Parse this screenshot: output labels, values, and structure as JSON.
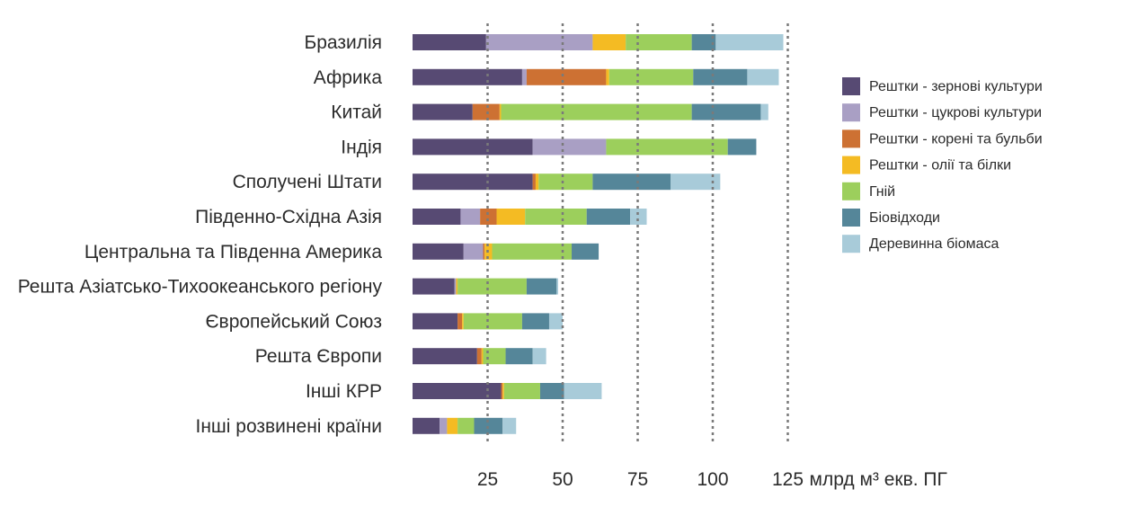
{
  "chart_data": {
    "type": "bar",
    "orientation": "horizontal",
    "stacked": true,
    "categories": [
      "Бразилія",
      "Африка",
      "Китай",
      "Індія",
      "Сполучені Штати",
      "Південно-Східна Азія",
      "Центральна та Південна Америка",
      "Решта Азіатсько-Тихоокеанського регіону",
      "Європейський Союз",
      "Решта Європи",
      "Інші КРР",
      "Інші розвинені країни"
    ],
    "series": [
      {
        "name": "Рештки - зернові культури",
        "color": "#574a73",
        "values": [
          24.5,
          36.5,
          20,
          40,
          40,
          16,
          17,
          14,
          15,
          21.5,
          29.5,
          9
        ]
      },
      {
        "name": "Рештки - цукрові культури",
        "color": "#a99fc4",
        "values": [
          35.5,
          1.5,
          0,
          24.5,
          0,
          6.5,
          6.5,
          0.5,
          0,
          0,
          0,
          2.5
        ]
      },
      {
        "name": "Рештки - корені та бульби",
        "color": "#cd7133",
        "values": [
          0,
          26.5,
          9,
          0,
          1,
          5.5,
          0.5,
          0,
          1.5,
          1.5,
          0.5,
          0
        ]
      },
      {
        "name": "Рештки - олії та білки",
        "color": "#f4bb23",
        "values": [
          11,
          1,
          0.5,
          0,
          1,
          9.5,
          2.5,
          0.5,
          0.5,
          0.5,
          0.5,
          3.5
        ]
      },
      {
        "name": "Гній",
        "color": "#9ccf5c",
        "values": [
          22,
          28,
          63.5,
          40.5,
          18,
          20.5,
          26.5,
          23,
          19.5,
          7.5,
          12,
          5.5
        ]
      },
      {
        "name": "Біовідходи",
        "color": "#558699",
        "values": [
          8,
          18,
          23,
          9.5,
          26,
          14.5,
          9,
          10,
          9,
          9,
          8,
          9.5
        ]
      },
      {
        "name": "Деревинна біомаса",
        "color": "#a8cbd9",
        "values": [
          22.5,
          10.5,
          2.5,
          0,
          16.5,
          5.5,
          0,
          0.5,
          4.5,
          4.5,
          12.5,
          4.5
        ]
      }
    ],
    "x_ticks": [
      25,
      50,
      75,
      100,
      125
    ],
    "xlim": [
      0,
      125
    ],
    "xlabel": "млрд м³ екв. ПГ",
    "gridlines": "dotted vertical",
    "legend_position": "right"
  }
}
